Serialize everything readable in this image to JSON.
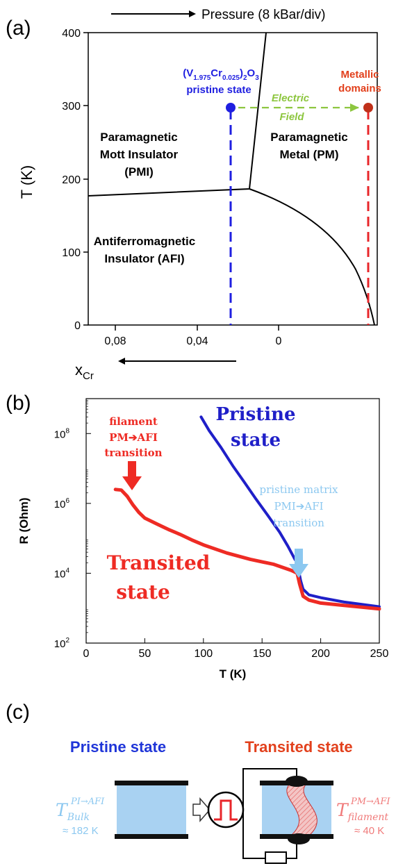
{
  "panel_a": {
    "label": "(a)",
    "pressure_label": "Pressure (8 kBar/div)",
    "ylabel": "T (K)",
    "xlabel_main": "x",
    "xlabel_sub": "Cr",
    "y_ticks": [
      "0",
      "100",
      "200",
      "300",
      "400"
    ],
    "x_ticks": [
      "0,08",
      "0,04",
      "0"
    ],
    "pristine_line1_pre": "(V",
    "pristine_line1_sub1": "1.975",
    "pristine_line1_mid": "Cr",
    "pristine_line1_sub2": "0.025",
    "pristine_line1_post": ")",
    "pristine_line1_sub3": "2",
    "pristine_line1_end": "O",
    "pristine_line1_sub4": "3",
    "pristine_line2": "pristine state",
    "metallic_line1": "Metallic",
    "metallic_line2": "domains",
    "field_line1": "Electric",
    "field_line2": "Field",
    "pmi_line1": "Paramagnetic",
    "pmi_line2": "Mott Insulator",
    "pmi_line3": "(PMI)",
    "pm_line1": "Paramagnetic",
    "pm_line2": "Metal (PM)",
    "afi_line1": "Antiferromagnetic",
    "afi_line2": "Insulator (AFI)",
    "colors": {
      "pristine": "#1f1fe0",
      "metallic": "#e2401c",
      "field": "#8dc63f",
      "red_dash": "#e8262a"
    }
  },
  "panel_b": {
    "label": "(b)",
    "chart_data": {
      "type": "line",
      "xlabel": "T (K)",
      "ylabel": "R (Ohm)",
      "xlim": [
        0,
        250
      ],
      "ylim_log10": [
        2,
        9
      ],
      "x_ticks": [
        "0",
        "50",
        "100",
        "150",
        "200",
        "250"
      ],
      "y_ticks": [
        {
          "base": "10",
          "exp": "2"
        },
        {
          "base": "10",
          "exp": "4"
        },
        {
          "base": "10",
          "exp": "6"
        },
        {
          "base": "10",
          "exp": "8"
        }
      ],
      "series": [
        {
          "name": "Pristine state",
          "color": "#1f1fc8",
          "points": [
            [
              98,
              300000000
            ],
            [
              105,
              120000000
            ],
            [
              115,
              40000000
            ],
            [
              125,
              12000000
            ],
            [
              135,
              4000000
            ],
            [
              145,
              1300000
            ],
            [
              155,
              450000
            ],
            [
              165,
              150000
            ],
            [
              172,
              60000
            ],
            [
              178,
              25000
            ],
            [
              180,
              20000
            ],
            [
              181,
              13000
            ],
            [
              183,
              6000
            ],
            [
              185,
              3500
            ],
            [
              190,
              2400
            ],
            [
              200,
              2000
            ],
            [
              220,
              1500
            ],
            [
              250,
              1100
            ]
          ]
        },
        {
          "name": "Transited state",
          "color": "#ee2b24",
          "points": [
            [
              25,
              2500000
            ],
            [
              30,
              2400000
            ],
            [
              35,
              1600000
            ],
            [
              40,
              900000
            ],
            [
              45,
              550000
            ],
            [
              50,
              380000
            ],
            [
              60,
              260000
            ],
            [
              70,
              180000
            ],
            [
              80,
              130000
            ],
            [
              90,
              90000
            ],
            [
              100,
              65000
            ],
            [
              120,
              38000
            ],
            [
              140,
              25000
            ],
            [
              160,
              18000
            ],
            [
              175,
              12000
            ],
            [
              180,
              10000
            ],
            [
              182,
              5000
            ],
            [
              185,
              2200
            ],
            [
              190,
              1700
            ],
            [
              200,
              1400
            ],
            [
              220,
              1200
            ],
            [
              250,
              950
            ]
          ]
        }
      ]
    },
    "pristine_label_line1": "Pristine",
    "pristine_label_line2": "state",
    "transited_label_line1": "Transited",
    "transited_label_line2": "state",
    "filament_line1": "filament",
    "filament_line2": "PM➔AFI",
    "filament_line3": "transition",
    "matrix_line1": "pristine matrix",
    "matrix_line2": "PMI➔AFI",
    "matrix_line3": "transition",
    "colors": {
      "light_blue": "#8cc8f0",
      "red": "#ee2b24",
      "blue": "#1f1fc8"
    }
  },
  "panel_c": {
    "label": "(c)",
    "pristine_title": "Pristine state",
    "transited_title": "Transited state",
    "t_bulk_main": "T",
    "t_bulk_sub": "Bulk",
    "t_bulk_sup": "PI→AFI",
    "t_bulk_value": "≈ 182 K",
    "t_fil_main": "T",
    "t_fil_sub": "filament",
    "t_fil_sup": "PM→AFI",
    "t_fil_value": "≈ 40 K",
    "colors": {
      "blue_title": "#1f35d8",
      "red_title": "#e2401c",
      "block_fill": "#a9d2f2",
      "light_blue_text": "#8cc8f0",
      "light_red_text": "#f07a7a"
    }
  }
}
